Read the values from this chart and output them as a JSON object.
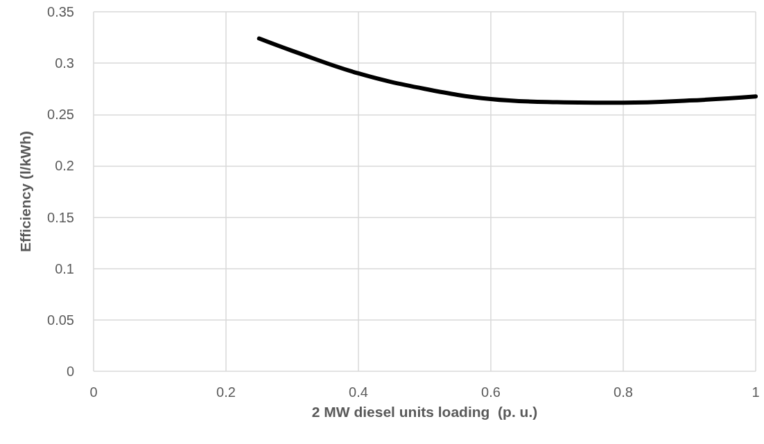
{
  "chart_data": {
    "type": "line",
    "xlabel": "2 MW diesel units loading  (p. u.)",
    "ylabel": "Efficiency (l/kWh)",
    "x": [
      0.25,
      0.3,
      0.4,
      0.5,
      0.6,
      0.7,
      0.8,
      0.9,
      1
    ],
    "series": [
      {
        "color": "#000000",
        "values": [
          0.324,
          0.312,
          0.29,
          0.275,
          0.265,
          0.262,
          0.2615,
          0.2636,
          0.2675
        ]
      }
    ],
    "xlim": [
      0,
      1
    ],
    "xticks": [
      0,
      0.2,
      0.4,
      0.6,
      0.8,
      1
    ],
    "ylim": [
      0,
      0.35
    ],
    "yticks": [
      0,
      0.05,
      0.1,
      0.15,
      0.2,
      0.25,
      0.3,
      0.35
    ],
    "grid": true,
    "marker": "none",
    "line_style": "solid"
  }
}
